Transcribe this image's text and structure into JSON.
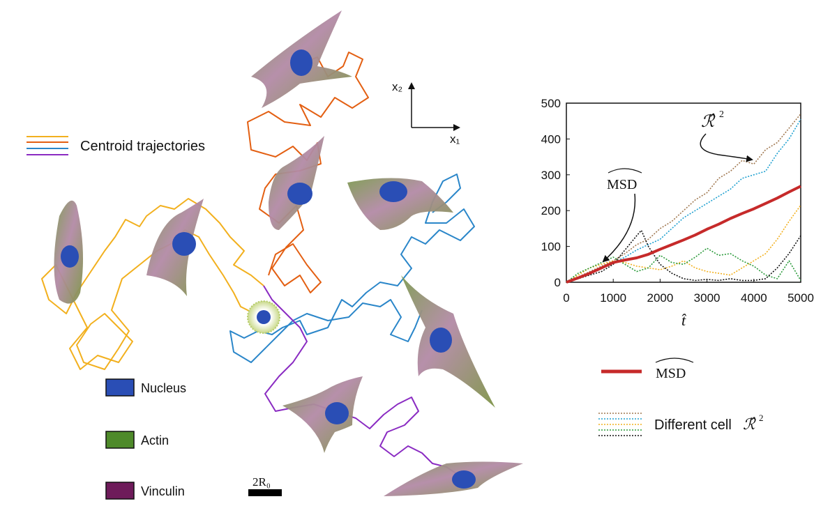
{
  "legend": {
    "trajectories_label": "Centroid trajectories",
    "trajectory_colors": [
      "#f2b01e",
      "#e35f12",
      "#2a86c9",
      "#8a2bc2"
    ],
    "components": [
      {
        "label": "Nucleus",
        "color": "#2a4eb5"
      },
      {
        "label": "Actin",
        "color": "#4e8a2a"
      },
      {
        "label": "Vinculin",
        "color": "#6e1b5a"
      }
    ]
  },
  "axes_icon": {
    "x_label": "x₁",
    "y_label": "x₂"
  },
  "scale_bar": {
    "label": "2R₀"
  },
  "chart_legend": {
    "msd_label": "MSD",
    "msd_color": "#c62a2a",
    "cells_label_prefix": "Different cell",
    "cells_label_symbol": "ℛ̂",
    "cells_label_power": "2",
    "cell_colors": [
      "#a07850",
      "#1ea0d0",
      "#f2b01e",
      "#2a9a3a",
      "#111111"
    ]
  },
  "chart_data": {
    "type": "line",
    "xlabel": "t̂",
    "ylabel": "",
    "xlim": [
      0,
      5000
    ],
    "ylim": [
      0,
      500
    ],
    "x_ticks": [
      "0",
      "1000",
      "2000",
      "3000",
      "4000",
      "5000"
    ],
    "y_ticks": [
      "0",
      "100",
      "200",
      "300",
      "400",
      "500"
    ],
    "annotations": [
      {
        "text": "ℛ̂",
        "power": "2",
        "points_to": [
          3800,
          340
        ]
      },
      {
        "text": "MSD",
        "points_to": [
          700,
          80
        ]
      }
    ],
    "series": [
      {
        "name": "MSD",
        "color": "#c62a2a",
        "x": [
          0,
          250,
          500,
          750,
          1000,
          1250,
          1500,
          1750,
          2000,
          2250,
          2500,
          2750,
          3000,
          3250,
          3500,
          3750,
          4000,
          4250,
          4500,
          4750,
          5000
        ],
        "y": [
          0,
          12,
          25,
          40,
          55,
          62,
          68,
          78,
          92,
          105,
          118,
          132,
          148,
          162,
          178,
          192,
          205,
          220,
          235,
          252,
          268
        ]
      },
      {
        "color": "#a07850",
        "x": [
          0,
          250,
          500,
          750,
          1000,
          1250,
          1500,
          1750,
          2000,
          2250,
          2500,
          2750,
          3000,
          3250,
          3500,
          3750,
          4000,
          4250,
          4500,
          4750,
          5000
        ],
        "y": [
          0,
          15,
          30,
          45,
          60,
          80,
          105,
          120,
          150,
          170,
          200,
          230,
          250,
          290,
          310,
          340,
          330,
          370,
          390,
          430,
          470
        ]
      },
      {
        "color": "#1ea0d0",
        "x": [
          0,
          250,
          500,
          750,
          1000,
          1250,
          1500,
          1750,
          2000,
          2250,
          2500,
          2750,
          3000,
          3250,
          3500,
          3750,
          4000,
          4250,
          4500,
          4750,
          5000
        ],
        "y": [
          0,
          10,
          25,
          40,
          55,
          70,
          90,
          105,
          120,
          150,
          180,
          200,
          220,
          240,
          260,
          290,
          300,
          310,
          360,
          400,
          455
        ]
      },
      {
        "color": "#f2b01e",
        "x": [
          0,
          250,
          500,
          750,
          1000,
          1250,
          1500,
          1750,
          2000,
          2250,
          2500,
          2750,
          3000,
          3250,
          3500,
          3750,
          4000,
          4250,
          4500,
          4750,
          5000
        ],
        "y": [
          0,
          20,
          40,
          50,
          60,
          55,
          45,
          40,
          35,
          45,
          60,
          40,
          30,
          25,
          20,
          40,
          60,
          80,
          120,
          170,
          215
        ]
      },
      {
        "color": "#2a9a3a",
        "x": [
          0,
          250,
          500,
          750,
          1000,
          1250,
          1500,
          1750,
          2000,
          2250,
          2500,
          2750,
          3000,
          3250,
          3500,
          3750,
          4000,
          4250,
          4500,
          4750,
          5000
        ],
        "y": [
          0,
          25,
          40,
          55,
          70,
          50,
          30,
          40,
          75,
          55,
          50,
          70,
          95,
          75,
          80,
          60,
          45,
          20,
          10,
          60,
          5
        ]
      },
      {
        "color": "#111111",
        "x": [
          0,
          250,
          500,
          750,
          1000,
          1250,
          1500,
          1600,
          1750,
          2000,
          2250,
          2500,
          2750,
          3000,
          3250,
          3500,
          3750,
          4000,
          4250,
          4500,
          4750,
          5000
        ],
        "y": [
          0,
          10,
          20,
          30,
          50,
          90,
          130,
          145,
          100,
          50,
          25,
          10,
          5,
          8,
          5,
          10,
          5,
          5,
          10,
          40,
          80,
          130
        ]
      }
    ]
  }
}
